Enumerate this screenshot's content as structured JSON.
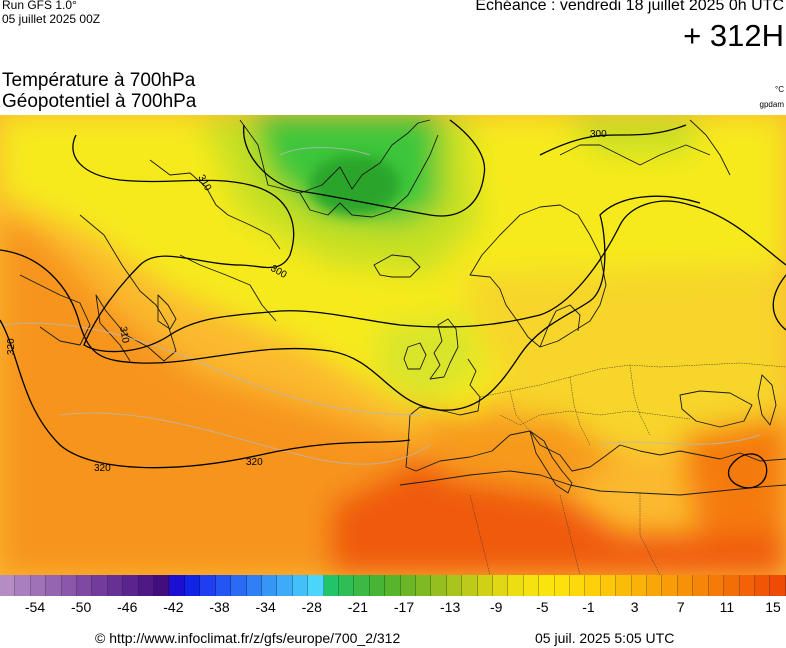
{
  "header": {
    "run_label": "Run GFS 1.0°",
    "run_date": "05 juillet 2025 00Z",
    "echeance": "Echéance : vendredi 18 juillet 2025 0h UTC",
    "lead_time": "+ 312H"
  },
  "titles": {
    "line1": "Température à 700hPa",
    "line2": "Géopotentiel à 700hPa",
    "unit_temperature": "°C",
    "unit_geopotential": "gpdam"
  },
  "contour_labels": [
    "300",
    "300",
    "310",
    "310",
    "320",
    "320",
    "320"
  ],
  "legend": {
    "tick_labels": [
      "-54",
      "-50",
      "-46",
      "-42",
      "-38",
      "-34",
      "-28",
      "-21",
      "-17",
      "-13",
      "-9",
      "-5",
      "-1",
      "3",
      "7",
      "11",
      "15"
    ],
    "colors": [
      "#b58cc4",
      "#a97fbf",
      "#9f72b8",
      "#9565b1",
      "#8a57aa",
      "#7f49a3",
      "#733c9c",
      "#663095",
      "#5a238d",
      "#4e1885",
      "#420e7d",
      "#1b0fd2",
      "#1024e6",
      "#1f3ef0",
      "#2455f2",
      "#2a6af4",
      "#2f80f5",
      "#3696f6",
      "#3dabf7",
      "#44c0f8",
      "#4bd5f9",
      "#22c46a",
      "#2fbe55",
      "#3cb845",
      "#47b435",
      "#58b42a",
      "#6bb626",
      "#80ba23",
      "#95bf20",
      "#a9c41d",
      "#bdca1a",
      "#d0d117",
      "#e0d814",
      "#edde12",
      "#f5e210",
      "#fbe40e",
      "#fde10d",
      "#fdd90c",
      "#fdd00b",
      "#fcc60a",
      "#fbbc09",
      "#fab208",
      "#f9a708",
      "#f89c07",
      "#f79107",
      "#f68607",
      "#f57a07",
      "#f46e07",
      "#f36207",
      "#f15607",
      "#ef4b07"
    ],
    "field_colors": {
      "hot": "#f05a10",
      "warm": "#f7941d",
      "mild": "#fbb930",
      "yellow": "#f6ea1a",
      "lime": "#c7e024",
      "green": "#3ec63a",
      "cold": "#2ca52a"
    }
  },
  "footer": {
    "copyright": "© http://www.infoclimat.fr/z/gfs/europe/700_2/312",
    "date": "05 juil. 2025  5:05 UTC"
  }
}
